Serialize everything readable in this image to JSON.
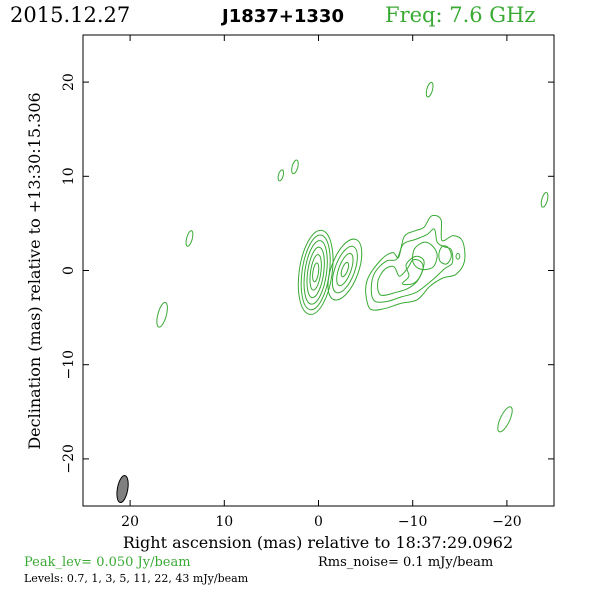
{
  "header": {
    "date": "2015.12.27",
    "source": "J1837+1330",
    "freq": "Freq: 7.6 GHz"
  },
  "footer": {
    "peak": "Peak_lev=  0.050 Jy/beam",
    "rms": "Rms_noise=   0.1 mJy/beam",
    "levels": "Levels: 0.7,    1,    3,    5,   11,   22,   43 mJy/beam"
  },
  "colors": {
    "contour": "#3aaa35",
    "header_green": "#3aaa35",
    "beam_fill": "#808080",
    "axis": "#000000"
  },
  "chart_data": {
    "type": "contour",
    "xlabel": "Right ascension (mas) relative to 18:37:29.0962",
    "ylabel": "Declination (mas) relative to +13:30:15.306",
    "xlim": [
      25,
      -25
    ],
    "ylim": [
      -25,
      25
    ],
    "x_ticks": [
      20,
      10,
      0,
      -10,
      -20
    ],
    "x_tick_labels": [
      "20",
      "10",
      "0",
      "−10",
      "−20"
    ],
    "y_ticks": [
      20,
      10,
      0,
      -10,
      -20
    ],
    "y_tick_labels": [
      "20",
      "10",
      "0",
      "−10",
      "−20"
    ],
    "contour_levels_mJy": [
      0.7,
      1,
      3,
      5,
      11,
      22,
      43
    ],
    "beam": {
      "x": 20.8,
      "y": -23.2,
      "major": 2.9,
      "minor": 1.1,
      "pa_deg": 10
    },
    "core": {
      "x": 0.3,
      "y": -0.2,
      "rings": [
        {
          "rx": 1.75,
          "ry": 4.5,
          "rot": 8
        },
        {
          "rx": 1.45,
          "ry": 4.0,
          "rot": 8
        },
        {
          "rx": 1.15,
          "ry": 3.4,
          "rot": 8
        },
        {
          "rx": 0.85,
          "ry": 2.7,
          "rot": 8
        },
        {
          "rx": 0.55,
          "ry": 1.9,
          "rot": 8
        },
        {
          "rx": 0.3,
          "ry": 1.0,
          "rot": 8
        }
      ]
    },
    "knot": {
      "x": -2.8,
      "y": 0.1,
      "rings": [
        {
          "rx": 1.45,
          "ry": 3.4,
          "rot": 20
        },
        {
          "rx": 1.05,
          "ry": 2.6,
          "rot": 20
        },
        {
          "rx": 0.65,
          "ry": 1.8,
          "rot": 20
        },
        {
          "rx": 0.3,
          "ry": 0.8,
          "rot": 20
        }
      ]
    },
    "jet_contours": [
      [
        [
          -5.3,
          -3.8
        ],
        [
          -5.0,
          -2.0
        ],
        [
          -5.4,
          -0.5
        ],
        [
          -6.8,
          1.3
        ],
        [
          -7.9,
          1.9
        ],
        [
          -8.5,
          1.4
        ],
        [
          -9.1,
          3.6
        ],
        [
          -10.2,
          4.2
        ],
        [
          -11.2,
          4.6
        ],
        [
          -12.0,
          5.8
        ],
        [
          -13.0,
          5.4
        ],
        [
          -13.1,
          3.2
        ],
        [
          -14.3,
          3.7
        ],
        [
          -15.3,
          3.1
        ],
        [
          -15.5,
          1.0
        ],
        [
          -14.6,
          -0.4
        ],
        [
          -13.2,
          -0.8
        ],
        [
          -11.8,
          -1.7
        ],
        [
          -10.5,
          -3.1
        ],
        [
          -8.7,
          -3.5
        ],
        [
          -7.2,
          -4.0
        ],
        [
          -5.9,
          -4.2
        ]
      ],
      [
        [
          -5.9,
          -3.2
        ],
        [
          -5.6,
          -1.8
        ],
        [
          -6.0,
          -0.2
        ],
        [
          -7.2,
          1.0
        ],
        [
          -8.3,
          1.2
        ],
        [
          -9.0,
          2.8
        ],
        [
          -10.3,
          3.3
        ],
        [
          -11.5,
          3.8
        ],
        [
          -12.3,
          4.4
        ],
        [
          -12.6,
          3.0
        ],
        [
          -13.4,
          2.5
        ],
        [
          -14.1,
          2.2
        ],
        [
          -14.2,
          0.8
        ],
        [
          -13.4,
          0.2
        ],
        [
          -12.1,
          -1.0
        ],
        [
          -10.4,
          -2.3
        ],
        [
          -8.8,
          -2.8
        ],
        [
          -7.2,
          -3.3
        ]
      ],
      [
        [
          -6.6,
          -2.6
        ],
        [
          -6.3,
          -1.2
        ],
        [
          -7.0,
          0.1
        ],
        [
          -8.0,
          0.4
        ],
        [
          -8.6,
          -0.6
        ],
        [
          -9.5,
          0.3
        ],
        [
          -10.0,
          1.1
        ],
        [
          -10.8,
          1.0
        ],
        [
          -11.1,
          0.2
        ],
        [
          -10.5,
          -1.1
        ],
        [
          -9.5,
          -1.9
        ],
        [
          -8.3,
          -2.3
        ]
      ],
      [
        [
          -8.9,
          -1.4
        ],
        [
          -9.6,
          -0.6
        ],
        [
          -9.3,
          0.6
        ],
        [
          -10.3,
          1.5
        ],
        [
          -11.2,
          1.0
        ],
        [
          -10.8,
          -0.6
        ],
        [
          -10.0,
          -1.4
        ]
      ],
      [
        [
          -10.0,
          1.0
        ],
        [
          -10.2,
          2.3
        ],
        [
          -11.2,
          3.0
        ],
        [
          -12.1,
          2.6
        ],
        [
          -12.6,
          1.6
        ],
        [
          -12.2,
          0.4
        ],
        [
          -11.3,
          0.1
        ],
        [
          -10.5,
          0.3
        ]
      ],
      [
        [
          -12.8,
          1.9
        ],
        [
          -12.9,
          1.0
        ],
        [
          -13.6,
          0.7
        ],
        [
          -14.1,
          1.5
        ],
        [
          -13.8,
          2.4
        ],
        [
          -13.2,
          2.6
        ]
      ]
    ],
    "islands": [
      {
        "x": -11.8,
        "y": 19.2,
        "rx": 0.3,
        "ry": 0.8,
        "rot": 15
      },
      {
        "x": 2.5,
        "y": 11.0,
        "rx": 0.3,
        "ry": 0.75,
        "rot": 15
      },
      {
        "x": 4.0,
        "y": 10.1,
        "rx": 0.25,
        "ry": 0.6,
        "rot": 15
      },
      {
        "x": 13.7,
        "y": 3.4,
        "rx": 0.3,
        "ry": 0.85,
        "rot": 15
      },
      {
        "x": 16.6,
        "y": -4.7,
        "rx": 0.45,
        "ry": 1.35,
        "rot": 15
      },
      {
        "x": -24.0,
        "y": 7.5,
        "rx": 0.3,
        "ry": 0.8,
        "rot": 15
      },
      {
        "x": -19.8,
        "y": -15.8,
        "rx": 0.5,
        "ry": 1.45,
        "rot": 25
      },
      {
        "x": -14.8,
        "y": 1.5,
        "rx": 0.2,
        "ry": 0.3,
        "rot": 0
      }
    ]
  }
}
